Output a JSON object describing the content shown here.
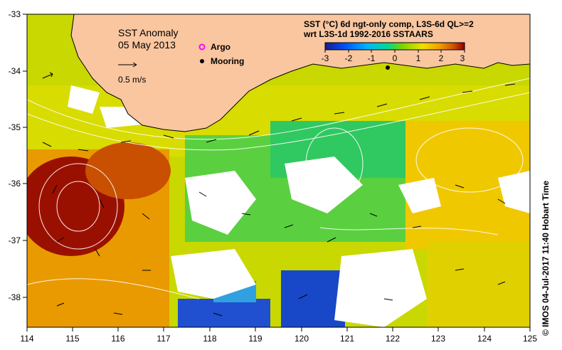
{
  "map": {
    "title": "SST Anomaly",
    "date": "05 May 2013",
    "product_line1": "SST (°C) 6d ngt-only comp, L3S-6d QL>=2",
    "product_line2": "wrt L3S-1d 1992-2016 SSTAARS",
    "colorbar": {
      "ticks": [
        "-3",
        "-2",
        "-1",
        "0",
        "1",
        "2",
        "3"
      ],
      "colors": [
        "#1a1a8c",
        "#0050ff",
        "#00b4ff",
        "#00d890",
        "#7ad400",
        "#f0e000",
        "#f0a000",
        "#d05000",
        "#900000"
      ]
    },
    "velocity_scale_label": "0.5 m/s",
    "legend": {
      "argo_label": "Argo",
      "mooring_label": "Mooring",
      "argo_color": "#ff00ff",
      "mooring_color": "#000000"
    },
    "credit": "© IMOS 04-Jul-2017 11:40 Hobart Time",
    "x_ticks": [
      "114",
      "115",
      "116",
      "117",
      "118",
      "119",
      "120",
      "121",
      "122",
      "123",
      "124",
      "125"
    ],
    "y_ticks": [
      "-33",
      "-34",
      "-35",
      "-36",
      "-37",
      "-38"
    ],
    "land_color": "#f9c6a0"
  }
}
